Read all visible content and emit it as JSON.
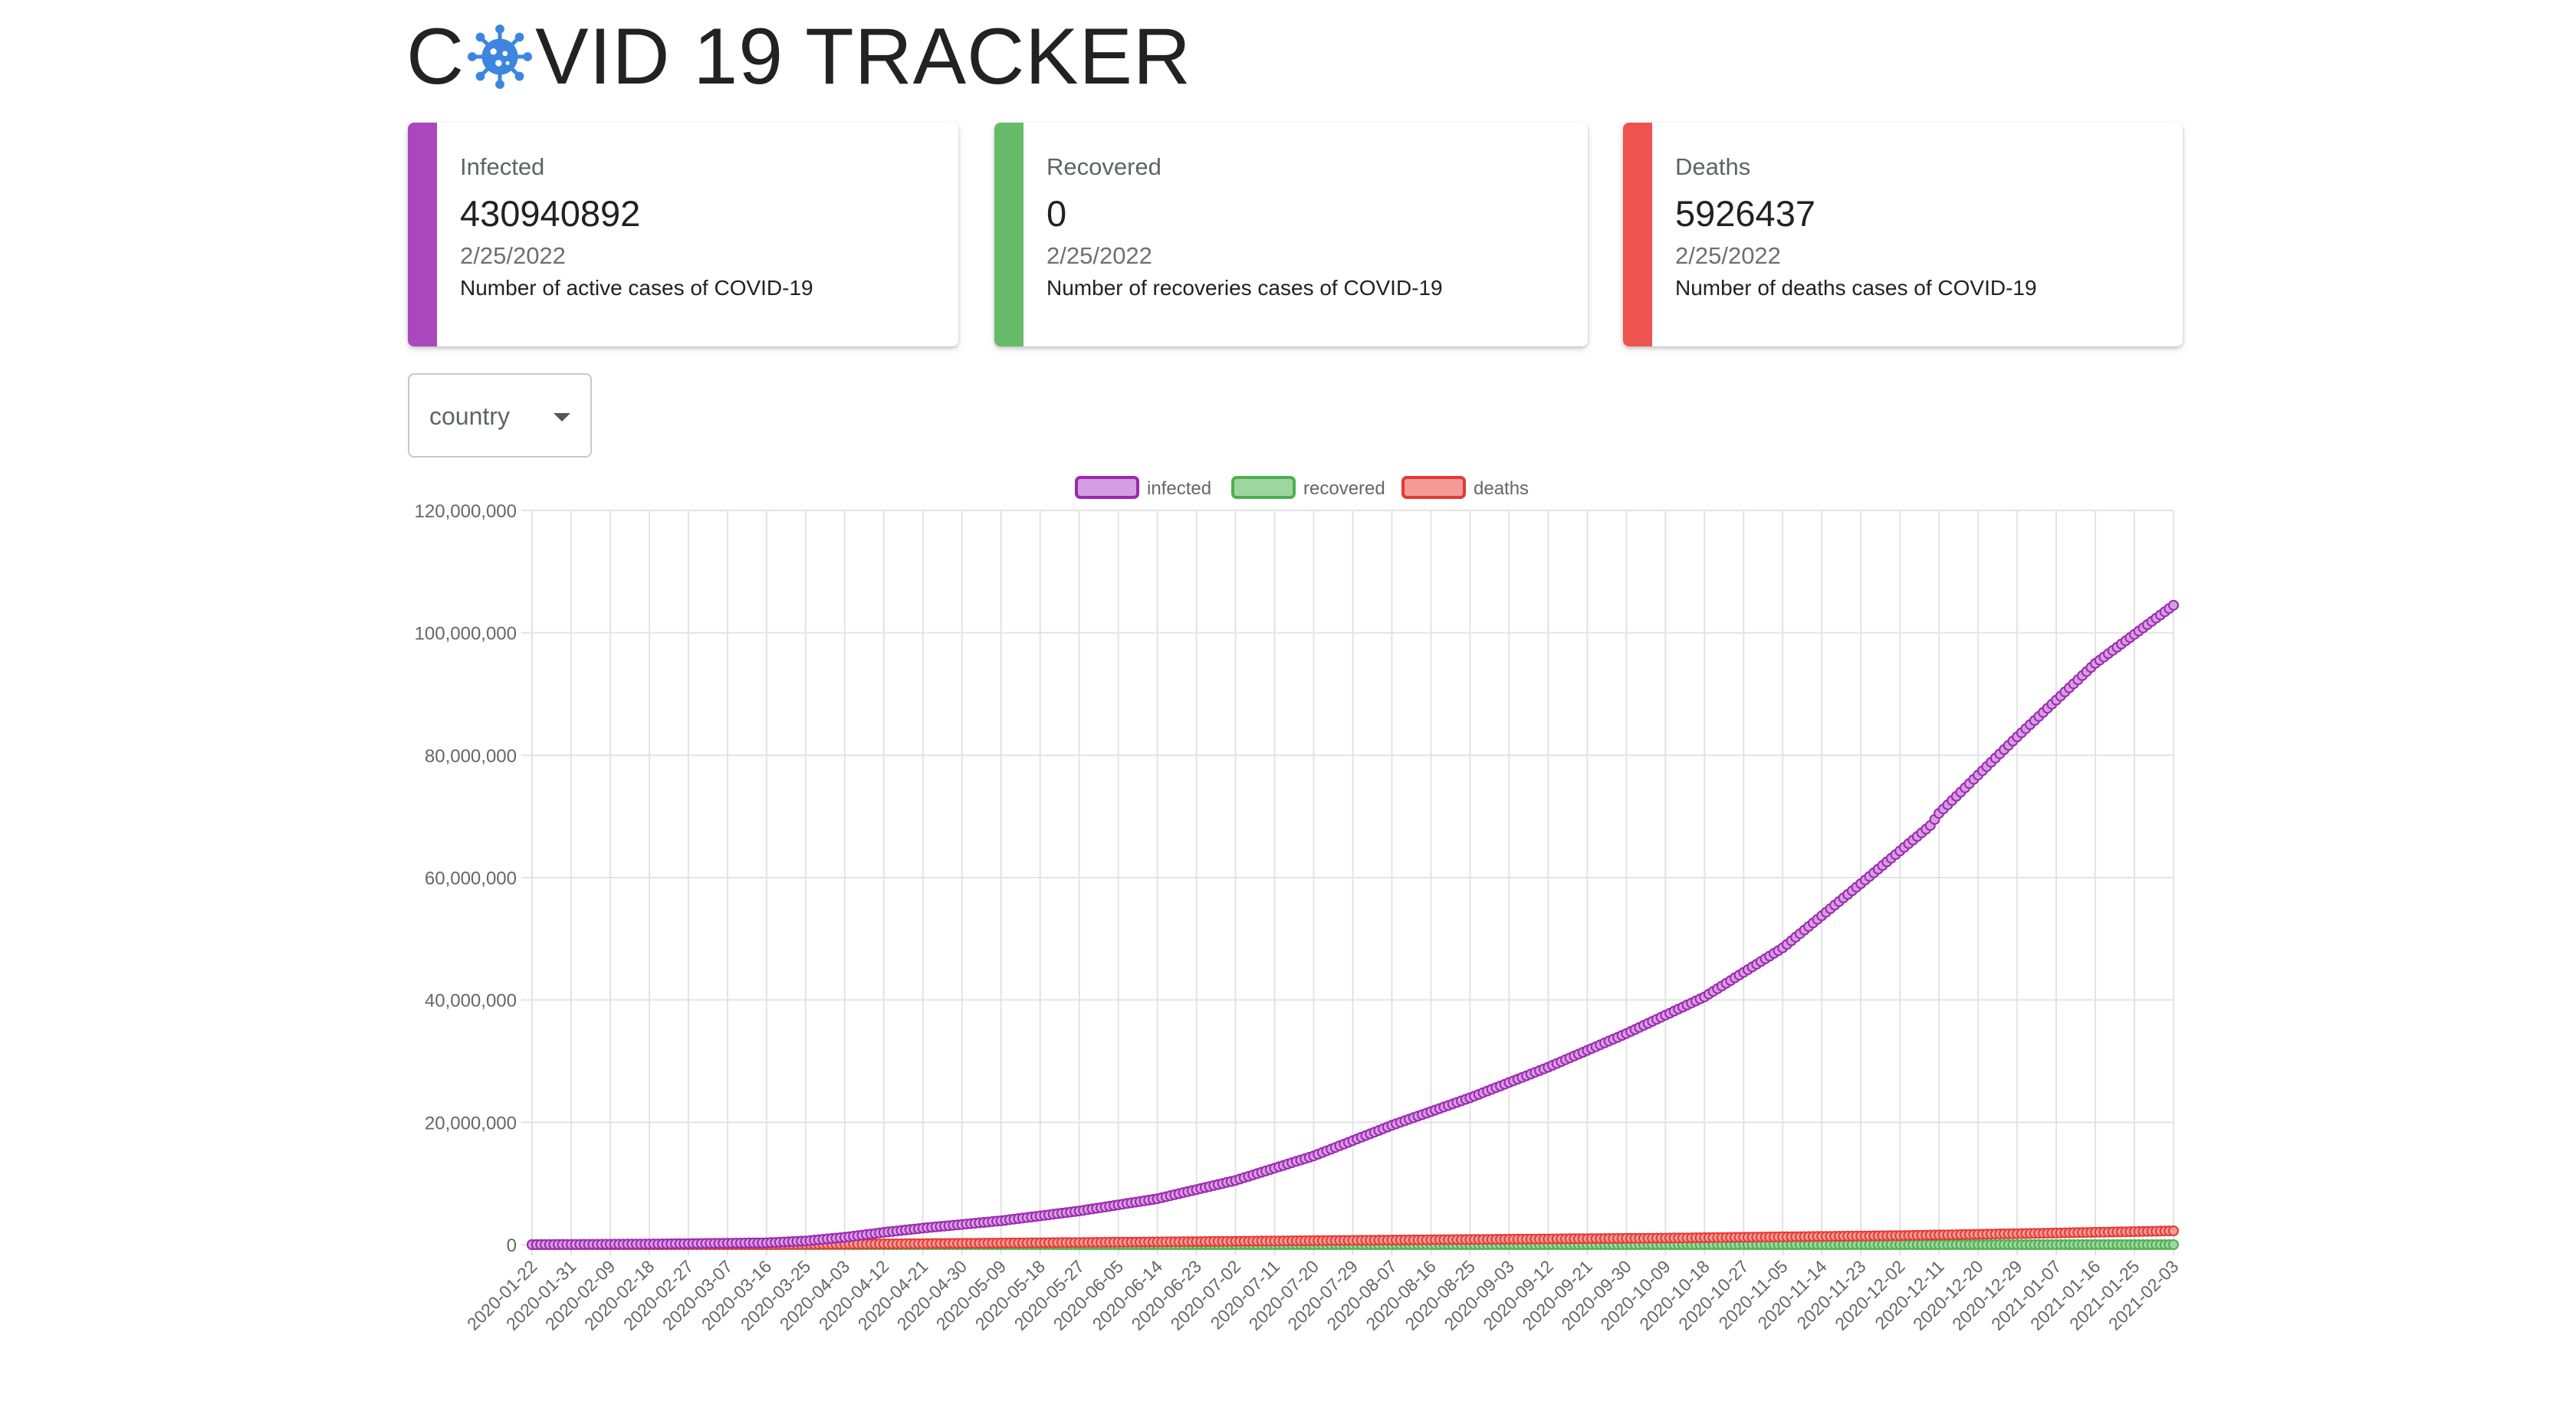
{
  "header": {
    "title_before": "C",
    "title_after": "VID 19 TRACKER",
    "title_icon": "virus-icon"
  },
  "cards": {
    "infected": {
      "label": "Infected",
      "value": "430940892",
      "date": "2/25/2022",
      "description": "Number of active cases of COVID-19",
      "color": "#ab47bc"
    },
    "recovered": {
      "label": "Recovered",
      "value": "0",
      "date": "2/25/2022",
      "description": "Number of recoveries cases of COVID-19",
      "color": "#66bb6a"
    },
    "deaths": {
      "label": "Deaths",
      "value": "5926437",
      "date": "2/25/2022",
      "description": "Number of deaths cases of COVID-19",
      "color": "#ef5350"
    }
  },
  "country_select": {
    "selected": "country",
    "icon": "chevron-down-icon"
  },
  "chart_data": {
    "type": "line",
    "grid": true,
    "legend_position": "top-center",
    "ylim": [
      0,
      120000000
    ],
    "y_ticks": [
      "0",
      "20,000,000",
      "40,000,000",
      "60,000,000",
      "80,000,000",
      "100,000,000",
      "120,000,000"
    ],
    "x_range": [
      "2020-01-22",
      "2021-02-03"
    ],
    "x_ticks": [
      "2020-01-22",
      "2020-01-31",
      "2020-02-09",
      "2020-02-18",
      "2020-02-27",
      "2020-03-07",
      "2020-03-16",
      "2020-03-25",
      "2020-04-03",
      "2020-04-12",
      "2020-04-21",
      "2020-04-30",
      "2020-05-09",
      "2020-05-18",
      "2020-05-27",
      "2020-06-05",
      "2020-06-14",
      "2020-06-23",
      "2020-07-02",
      "2020-07-11",
      "2020-07-20",
      "2020-07-29",
      "2020-08-07",
      "2020-08-16",
      "2020-08-25",
      "2020-09-03",
      "2020-09-12",
      "2020-09-21",
      "2020-09-30",
      "2020-10-09",
      "2020-10-18",
      "2020-10-27",
      "2020-11-05",
      "2020-11-14",
      "2020-11-23",
      "2020-12-02",
      "2020-12-11",
      "2020-12-20",
      "2020-12-29",
      "2021-01-07",
      "2021-01-16",
      "2021-01-25",
      "2021-02-03"
    ],
    "series": [
      {
        "name": "infected",
        "color": "#9c27b0",
        "fill": "#d59ee0",
        "points": [
          [
            "2020-01-22",
            0
          ],
          [
            "2020-02-18",
            100000
          ],
          [
            "2020-03-16",
            300000
          ],
          [
            "2020-03-25",
            600000
          ],
          [
            "2020-04-03",
            1200000
          ],
          [
            "2020-04-12",
            2000000
          ],
          [
            "2020-04-21",
            2700000
          ],
          [
            "2020-05-09",
            3900000
          ],
          [
            "2020-05-27",
            5500000
          ],
          [
            "2020-06-14",
            7500000
          ],
          [
            "2020-07-02",
            10500000
          ],
          [
            "2020-07-20",
            14500000
          ],
          [
            "2020-08-07",
            19500000
          ],
          [
            "2020-08-25",
            24000000
          ],
          [
            "2020-09-12",
            29000000
          ],
          [
            "2020-09-30",
            34500000
          ],
          [
            "2020-10-18",
            40500000
          ],
          [
            "2020-11-05",
            48500000
          ],
          [
            "2020-11-23",
            59000000
          ],
          [
            "2020-12-09",
            68500000
          ],
          [
            "2020-12-11",
            70500000
          ],
          [
            "2020-12-29",
            83000000
          ],
          [
            "2021-01-16",
            95000000
          ],
          [
            "2021-02-03",
            104500000
          ]
        ]
      },
      {
        "name": "recovered",
        "color": "#4caf50",
        "fill": "#9ed6a0",
        "points": [
          [
            "2020-01-22",
            0
          ],
          [
            "2021-02-03",
            0
          ]
        ]
      },
      {
        "name": "deaths",
        "color": "#e53935",
        "fill": "#f39b97",
        "points": [
          [
            "2020-01-22",
            0
          ],
          [
            "2020-03-16",
            10000
          ],
          [
            "2020-04-12",
            120000
          ],
          [
            "2020-06-05",
            400000
          ],
          [
            "2020-08-07",
            750000
          ],
          [
            "2020-10-09",
            1070000
          ],
          [
            "2020-12-02",
            1480000
          ],
          [
            "2021-01-07",
            1900000
          ],
          [
            "2021-02-03",
            2250000
          ]
        ]
      }
    ]
  }
}
